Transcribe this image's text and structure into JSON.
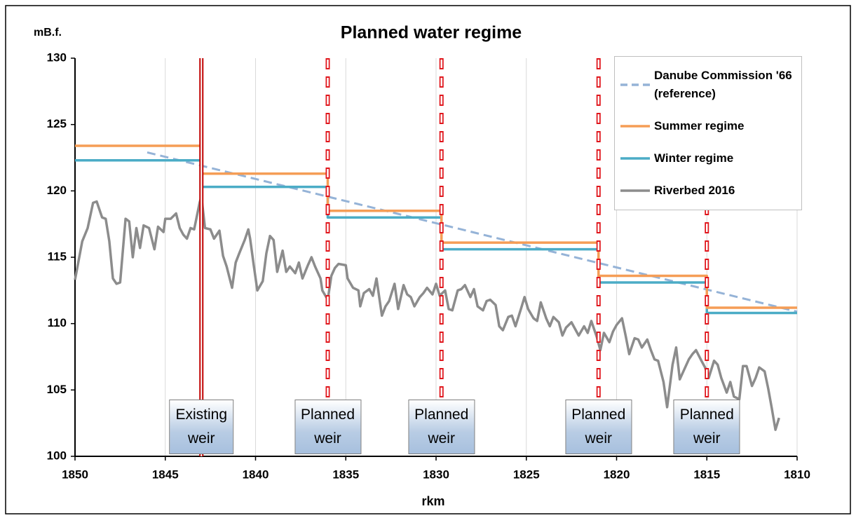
{
  "chart_data": {
    "type": "line",
    "title": "Planned water regime",
    "y_axis_label": "mB.f.",
    "x_axis_label": "rkm",
    "xlim": [
      1850,
      1810
    ],
    "xticks": [
      1850,
      1845,
      1840,
      1835,
      1830,
      1825,
      1820,
      1815,
      1810
    ],
    "ylim": [
      100,
      130
    ],
    "yticks": [
      100,
      105,
      110,
      115,
      120,
      125,
      130
    ],
    "grid": "x",
    "legend": "upper right",
    "series": [
      {
        "name": "Danube Commission '66 (reference)",
        "color": "#95b3d7",
        "dash": true,
        "x": [
          1846,
          1810
        ],
        "values": [
          122.9,
          110.9
        ]
      },
      {
        "name": "Summer regime",
        "color": "#f59d56",
        "dash": false,
        "x": [
          1850,
          1843,
          1843,
          1836,
          1836,
          1829.7,
          1829.7,
          1821,
          1821,
          1815,
          1815,
          1810
        ],
        "values": [
          123.4,
          123.4,
          121.3,
          121.3,
          118.5,
          118.5,
          116.1,
          116.1,
          113.6,
          113.6,
          111.2,
          111.2
        ]
      },
      {
        "name": "Winter regime",
        "color": "#4bacc6",
        "dash": false,
        "x": [
          1850,
          1843,
          1843,
          1836,
          1836,
          1829.7,
          1829.7,
          1821,
          1821,
          1815,
          1815,
          1810
        ],
        "values": [
          122.3,
          122.3,
          120.3,
          120.3,
          118.0,
          118.0,
          115.6,
          115.6,
          113.1,
          113.1,
          110.8,
          110.8
        ]
      },
      {
        "name": "Riverbed 2016",
        "color": "#8c8c8c",
        "dash": false,
        "x": [
          1850.0,
          1849.6,
          1849.3,
          1849.0,
          1848.8,
          1848.5,
          1848.3,
          1848.1,
          1847.9,
          1847.7,
          1847.5,
          1847.2,
          1847.0,
          1846.8,
          1846.6,
          1846.4,
          1846.2,
          1845.9,
          1845.6,
          1845.4,
          1845.1,
          1845.0,
          1844.7,
          1844.4,
          1844.2,
          1844.0,
          1843.8,
          1843.6,
          1843.4,
          1843.1,
          1843.0,
          1842.8,
          1842.5,
          1842.3,
          1842.0,
          1841.8,
          1841.6,
          1841.3,
          1841.1,
          1840.9,
          1840.6,
          1840.4,
          1840.3,
          1840.1,
          1839.9,
          1839.6,
          1839.4,
          1839.2,
          1839.0,
          1838.8,
          1838.5,
          1838.3,
          1838.1,
          1837.8,
          1837.6,
          1837.4,
          1837.1,
          1836.9,
          1836.7,
          1836.4,
          1836.3,
          1836.0,
          1835.8,
          1835.6,
          1835.4,
          1835.0,
          1834.9,
          1834.6,
          1834.3,
          1834.2,
          1834.0,
          1833.7,
          1833.5,
          1833.3,
          1833.0,
          1832.8,
          1832.6,
          1832.3,
          1832.1,
          1831.8,
          1831.6,
          1831.4,
          1831.2,
          1830.9,
          1830.7,
          1830.5,
          1830.2,
          1830.0,
          1829.8,
          1829.5,
          1829.3,
          1829.1,
          1828.8,
          1828.6,
          1828.4,
          1828.1,
          1827.9,
          1827.7,
          1827.4,
          1827.2,
          1827.0,
          1826.7,
          1826.5,
          1826.3,
          1826.0,
          1825.8,
          1825.6,
          1825.3,
          1825.1,
          1824.9,
          1824.6,
          1824.4,
          1824.2,
          1823.9,
          1823.7,
          1823.5,
          1823.2,
          1823.0,
          1822.8,
          1822.5,
          1822.3,
          1822.1,
          1821.8,
          1821.6,
          1821.4,
          1821.1,
          1820.9,
          1820.7,
          1820.4,
          1820.2,
          1820.0,
          1819.7,
          1819.5,
          1819.3,
          1819.0,
          1818.8,
          1818.6,
          1818.3,
          1818.1,
          1817.9,
          1817.7,
          1817.4,
          1817.2,
          1816.9,
          1816.7,
          1816.5,
          1816.3,
          1816.0,
          1815.8,
          1815.6,
          1815.3,
          1815.1,
          1814.9,
          1814.6,
          1814.4,
          1814.2,
          1813.9,
          1813.7,
          1813.5,
          1813.2,
          1813.0,
          1812.8,
          1812.5,
          1812.3,
          1812.1,
          1811.8,
          1811.6,
          1811.4,
          1811.2,
          1811.0
        ],
        "values": [
          113.3,
          116.2,
          117.2,
          119.1,
          119.2,
          118.0,
          117.9,
          116.2,
          113.4,
          113.0,
          113.1,
          117.9,
          117.7,
          115.0,
          117.2,
          115.7,
          117.4,
          117.2,
          115.6,
          117.3,
          116.9,
          117.9,
          117.9,
          118.3,
          117.2,
          116.7,
          116.4,
          117.2,
          117.1,
          119.1,
          119.6,
          117.2,
          117.1,
          116.4,
          117.0,
          115.1,
          114.3,
          112.7,
          114.6,
          115.3,
          116.3,
          117.1,
          116.4,
          114.4,
          112.5,
          113.2,
          115.3,
          116.6,
          116.3,
          113.9,
          115.5,
          113.9,
          114.3,
          113.8,
          114.6,
          113.4,
          114.4,
          115.0,
          114.3,
          113.4,
          112.5,
          111.8,
          113.6,
          114.2,
          114.5,
          114.4,
          113.4,
          112.7,
          112.5,
          111.3,
          112.3,
          112.6,
          112.1,
          113.4,
          110.6,
          111.3,
          111.7,
          113.0,
          111.1,
          112.9,
          112.2,
          112.0,
          111.3,
          112.0,
          112.3,
          112.7,
          112.2,
          113.0,
          112.1,
          112.5,
          111.1,
          111.0,
          112.5,
          112.6,
          112.9,
          112.0,
          112.6,
          111.3,
          111.0,
          111.7,
          111.8,
          111.4,
          109.8,
          109.5,
          110.5,
          110.6,
          109.8,
          111.1,
          112.0,
          111.1,
          110.4,
          110.2,
          111.6,
          110.4,
          109.8,
          110.5,
          110.1,
          109.1,
          109.7,
          110.1,
          109.6,
          109.1,
          109.8,
          109.3,
          110.2,
          109.0,
          108.0,
          109.3,
          108.6,
          109.4,
          109.9,
          110.4,
          109.1,
          107.7,
          108.9,
          108.8,
          108.2,
          108.8,
          108.0,
          107.3,
          107.2,
          105.6,
          103.7,
          106.9,
          108.2,
          105.8,
          106.4,
          107.3,
          107.7,
          108.0,
          107.2,
          106.7,
          105.9,
          107.2,
          106.9,
          105.9,
          104.8,
          105.6,
          104.5,
          104.3,
          106.8,
          106.8,
          105.3,
          105.9,
          106.7,
          106.4,
          105.1,
          103.6,
          102.0,
          102.9
        ]
      }
    ],
    "weirs": [
      {
        "x": 1843,
        "label": "Existing weir",
        "style": "solid"
      },
      {
        "x": 1836,
        "label": "Planned weir",
        "style": "dashed"
      },
      {
        "x": 1829.7,
        "label": "Planned weir",
        "style": "dashed"
      },
      {
        "x": 1821,
        "label": "Planned weir",
        "style": "dashed"
      },
      {
        "x": 1815,
        "label": "Planned weir",
        "style": "dashed"
      }
    ]
  }
}
